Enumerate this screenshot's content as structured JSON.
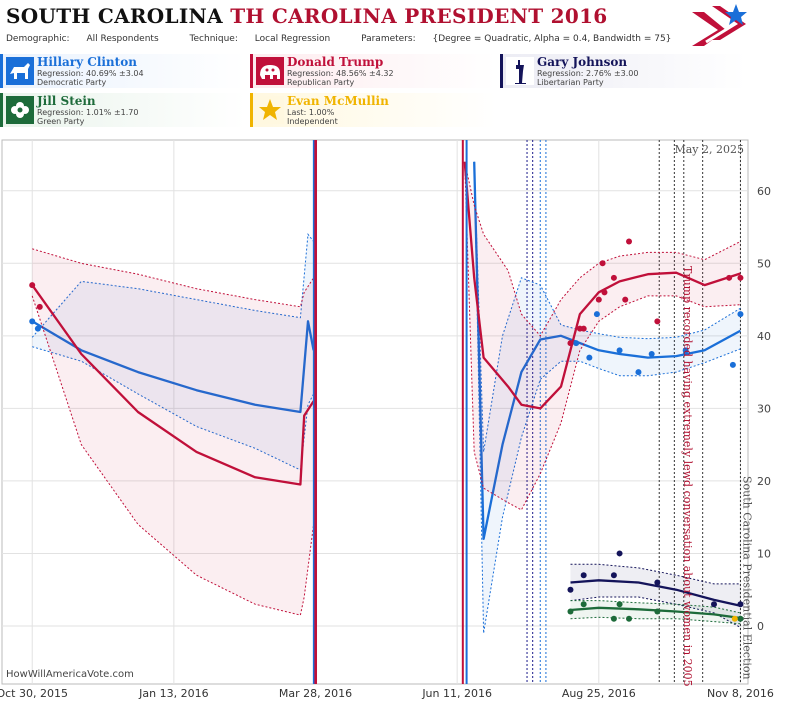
{
  "header": {
    "title_state": "SOUTH CAROLINA",
    "title_race": "TH CAROLINA PRESIDENT 2016",
    "demographic_label": "Demographic:",
    "demographic_value": "All Respondents",
    "technique_label": "Technique:",
    "technique_value": "Local Regression",
    "parameters_label": "Parameters:",
    "parameters_value": "{Degree = Quadratic, Alpha = 0.4, Bandwidth = 75}"
  },
  "candidates": [
    {
      "name": "Hillary Clinton",
      "line2": "Regression: 40.69% ±3.04",
      "line3": "Democratic Party",
      "color": "#1a6fd8",
      "bg": "#eaf2fd",
      "icon": "donkey-icon"
    },
    {
      "name": "Donald Trump",
      "line2": "Regression: 48.56% ±4.32",
      "line3": "Republican Party",
      "color": "#c0103a",
      "bg": "#fdecef",
      "icon": "elephant-icon"
    },
    {
      "name": "Gary Johnson",
      "line2": "Regression: 2.76% ±3.00",
      "line3": "Libertarian Party",
      "color": "#14145a",
      "bg": "#ececf4",
      "icon": "statue-of-liberty-icon"
    },
    {
      "name": "Jill Stein",
      "line2": "Regression: 1.01% ±1.70",
      "line3": "Green Party",
      "color": "#1d6b3a",
      "bg": "#eaf4ec",
      "icon": "flower-icon"
    },
    {
      "name": "Evan McMullin",
      "line2": "Last: 1.00%",
      "line3": "Independent",
      "color": "#f0b400",
      "bg": "#fff8e0",
      "icon": "star-icon"
    }
  ],
  "credit": "HowWillAmericaVote.com",
  "chart_data": {
    "type": "line",
    "date_stamp": "May 2, 2025",
    "x_ticks": [
      "Oct 30, 2015",
      "Jan 13, 2016",
      "Mar 28, 2016",
      "Jun 11, 2016",
      "Aug 25, 2016",
      "Nov 8, 2016"
    ],
    "x_tick_dates": [
      "2015-10-30",
      "2016-01-13",
      "2016-03-28",
      "2016-06-11",
      "2016-08-25",
      "2016-11-08"
    ],
    "x_range": [
      "2015-10-14",
      "2016-11-12"
    ],
    "y_ticks": [
      0,
      10,
      20,
      30,
      40,
      50,
      60
    ],
    "ylim": [
      -8,
      67
    ],
    "grid": true,
    "annotations": [
      {
        "text": "Trump recorded having extremely lewd conversation about women in 2005",
        "date": "2016-10-07",
        "color": "#b01030"
      },
      {
        "text": "South Carolina Presidential Election",
        "date": "2016-11-08",
        "color": "#555555"
      }
    ],
    "event_lines": [
      {
        "date": "2016-07-18",
        "color": "#1a1a8a"
      },
      {
        "date": "2016-07-21",
        "color": "#1a1a8a"
      },
      {
        "date": "2016-07-25",
        "color": "#1a6fd8"
      },
      {
        "date": "2016-07-28",
        "color": "#1a6fd8"
      },
      {
        "date": "2016-09-26",
        "color": "#333333"
      },
      {
        "date": "2016-10-04",
        "color": "#333333"
      },
      {
        "date": "2016-10-09",
        "color": "#333333"
      },
      {
        "date": "2016-10-19",
        "color": "#333333"
      },
      {
        "date": "2016-11-08",
        "color": "#333333"
      }
    ],
    "series": [
      {
        "name": "Hillary Clinton",
        "color": "#1a6fd8",
        "x": [
          "2015-10-30",
          "2015-11-25",
          "2015-12-25",
          "2016-01-25",
          "2016-02-25",
          "2016-03-20",
          "2016-03-24",
          "2016-03-27",
          "2016-03-29",
          "2016-06-20",
          "2016-06-25",
          "2016-07-05",
          "2016-07-15",
          "2016-07-25",
          "2016-08-05",
          "2016-08-15",
          "2016-08-25",
          "2016-09-05",
          "2016-09-20",
          "2016-10-05",
          "2016-10-20",
          "2016-11-08"
        ],
        "y": [
          42,
          38,
          35,
          32.5,
          30.5,
          29.5,
          42,
          38,
          -10,
          64,
          12,
          25,
          35,
          39.5,
          40,
          39,
          38,
          37.5,
          37,
          37.2,
          38,
          40.7
        ],
        "upper": [
          39.8,
          47.5,
          46.5,
          45,
          43.5,
          42.5,
          54,
          53,
          -10,
          64,
          24,
          40,
          48,
          47,
          41.5,
          40.8,
          40.3,
          39.8,
          39.6,
          39.8,
          40.8,
          43.8
        ],
        "lower": [
          38.5,
          36.5,
          32,
          27.5,
          24.5,
          21.5,
          30.5,
          32,
          -10,
          64,
          -1,
          15,
          26,
          34,
          36.5,
          36.5,
          35.5,
          34.5,
          34.5,
          35,
          36.3,
          38.2
        ],
        "points": {
          "x": [
            "2015-10-30",
            "2015-11-02",
            "2016-08-13",
            "2016-08-20",
            "2016-08-24",
            "2016-09-05",
            "2016-09-15",
            "2016-09-22",
            "2016-10-10",
            "2016-11-04",
            "2016-11-08"
          ],
          "y": [
            42,
            41,
            39,
            37,
            43,
            38,
            35,
            37.5,
            38,
            36,
            43
          ]
        }
      },
      {
        "name": "Donald Trump",
        "color": "#c0103a",
        "x": [
          "2015-10-30",
          "2015-11-25",
          "2015-12-25",
          "2016-01-25",
          "2016-02-25",
          "2016-03-20",
          "2016-03-22",
          "2016-03-27",
          "2016-03-29",
          "2016-06-15",
          "2016-06-20",
          "2016-06-25",
          "2016-07-08",
          "2016-07-15",
          "2016-07-25",
          "2016-08-05",
          "2016-08-15",
          "2016-08-25",
          "2016-09-05",
          "2016-09-20",
          "2016-10-05",
          "2016-10-20",
          "2016-11-08"
        ],
        "y": [
          47,
          37.5,
          29.5,
          24,
          20.5,
          19.5,
          29,
          31,
          -10,
          64,
          48,
          37,
          33,
          30.5,
          30,
          33,
          43,
          46,
          47.5,
          48.5,
          48.7,
          47,
          48.6
        ],
        "upper": [
          52,
          50,
          48.5,
          46.5,
          45,
          44,
          46,
          48,
          -10,
          64,
          58,
          54,
          49,
          43,
          40,
          45,
          48,
          50,
          51,
          51.5,
          51.5,
          50.5,
          53
        ],
        "lower": [
          45.5,
          25,
          14,
          7,
          3,
          1.5,
          4,
          14,
          -10,
          64,
          24,
          19,
          17,
          16,
          21,
          28,
          38,
          42,
          44,
          45.5,
          45.5,
          44,
          44.3
        ],
        "points": {
          "x": [
            "2015-10-30",
            "2015-11-03",
            "2016-08-10",
            "2016-08-15",
            "2016-08-17",
            "2016-08-25",
            "2016-08-27",
            "2016-08-28",
            "2016-09-02",
            "2016-09-08",
            "2016-09-10",
            "2016-09-25",
            "2016-11-02",
            "2016-11-08"
          ],
          "y": [
            47,
            44,
            39,
            41,
            41,
            45,
            50,
            46,
            48,
            45,
            53,
            42,
            48,
            48
          ]
        }
      },
      {
        "name": "Gary Johnson",
        "color": "#14145a",
        "x": [
          "2016-08-10",
          "2016-08-25",
          "2016-09-15",
          "2016-10-05",
          "2016-10-25",
          "2016-11-08"
        ],
        "y": [
          6,
          6.3,
          6,
          5,
          3.6,
          2.8
        ],
        "upper": [
          8.5,
          8.5,
          8,
          7,
          5.8,
          5.8
        ],
        "lower": [
          3.5,
          4,
          4,
          3,
          1.8,
          -0.2
        ],
        "points": {
          "x": [
            "2016-08-10",
            "2016-08-17",
            "2016-09-02",
            "2016-09-05",
            "2016-09-25",
            "2016-10-25",
            "2016-11-08"
          ],
          "y": [
            5,
            7,
            7,
            10,
            6,
            3,
            3
          ]
        }
      },
      {
        "name": "Jill Stein",
        "color": "#1d6b3a",
        "x": [
          "2016-08-10",
          "2016-08-25",
          "2016-09-15",
          "2016-10-05",
          "2016-10-25",
          "2016-11-08"
        ],
        "y": [
          2.2,
          2.5,
          2.3,
          2,
          1.6,
          1.1
        ],
        "upper": [
          3.5,
          3.5,
          3.2,
          3,
          2.6,
          1.8
        ],
        "lower": [
          1,
          1.2,
          1,
          1,
          0.6,
          0.3
        ],
        "points": {
          "x": [
            "2016-08-10",
            "2016-08-17",
            "2016-09-02",
            "2016-09-05",
            "2016-09-10",
            "2016-09-25",
            "2016-11-08"
          ],
          "y": [
            2,
            3,
            1,
            3,
            1,
            2,
            1
          ]
        }
      },
      {
        "name": "Evan McMullin",
        "color": "#f0b400",
        "x": [],
        "y": [],
        "points": {
          "x": [
            "2016-11-05"
          ],
          "y": [
            1
          ]
        }
      }
    ]
  }
}
